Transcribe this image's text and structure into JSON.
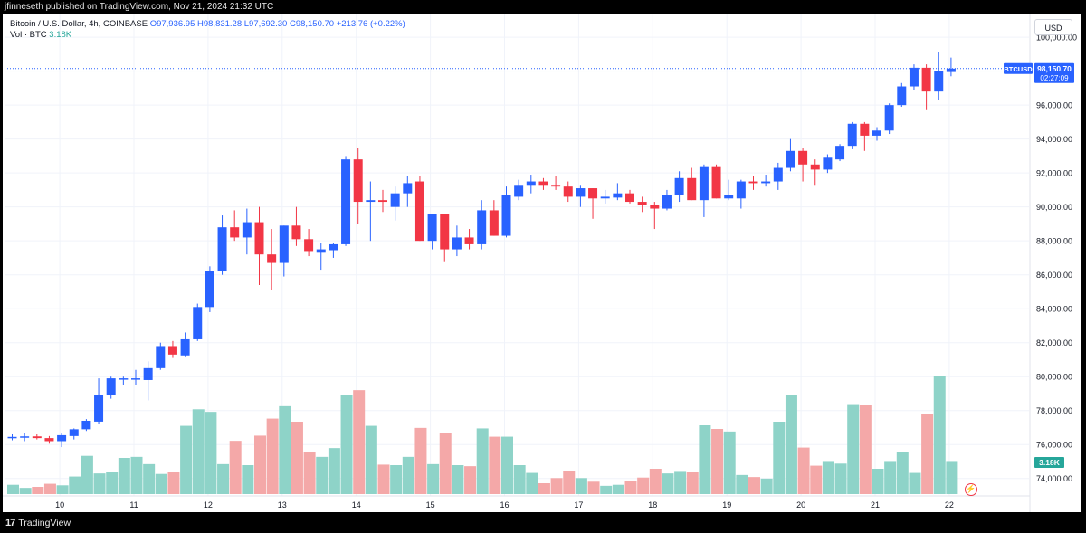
{
  "header": {
    "published": "jfinneseth published on TradingView.com, Nov 21, 2024 21:32 UTC"
  },
  "legend": {
    "symbol": "Bitcoin / U.S. Dollar, 4h, COINBASE",
    "open": "O97,936.95",
    "high": "H98,831.28",
    "low": "L97,692.30",
    "close": "C98,150.70",
    "change": "+213.76 (+0.22%)",
    "volume_label": "Vol · BTC",
    "volume_value": "3.18K"
  },
  "currency": "USD",
  "price_label": {
    "symbol": "BTCUSD",
    "price": "98,150.70",
    "countdown": "02:27:09"
  },
  "volume_badge": "3.18K",
  "footer": {
    "logo": "17",
    "brand": "TradingView"
  },
  "colors": {
    "up": "#2962ff",
    "down": "#f23645",
    "vol_up": "#8ed3c8",
    "vol_down": "#f4a8a8",
    "price_line": "#2962ff",
    "vol_badge": "#26a69a"
  },
  "chart_data": {
    "type": "candlestick",
    "interval": "4h",
    "y_axis_labels": [
      "100,000.00",
      "98,000.00",
      "96,000.00",
      "94,000.00",
      "92,000.00",
      "90,000.00",
      "88,000.00",
      "86,000.00",
      "84,000.00",
      "82,000.00",
      "80,000.00",
      "78,000.00",
      "76,000.00",
      "74,000.00"
    ],
    "ylim": [
      73400,
      100700
    ],
    "volume_scale_max": 1,
    "x_tick_labels": [
      "10",
      "11",
      "12",
      "13",
      "14",
      "15",
      "16",
      "17",
      "18",
      "19",
      "20",
      "21",
      "22"
    ],
    "x_tick_positions": [
      4,
      10,
      16,
      22,
      28,
      34,
      40,
      46,
      52,
      58,
      64,
      70,
      76
    ],
    "last_price": 98150.7,
    "candles": [
      {
        "o": 76450,
        "h": 76600,
        "l": 76250,
        "c": 76450,
        "v": 0.18
      },
      {
        "o": 76420,
        "h": 76700,
        "l": 76200,
        "c": 76480,
        "v": 0.12
      },
      {
        "o": 76480,
        "h": 76600,
        "l": 76300,
        "c": 76380,
        "v": 0.14
      },
      {
        "o": 76380,
        "h": 76500,
        "l": 76050,
        "c": 76200,
        "v": 0.2
      },
      {
        "o": 76200,
        "h": 76650,
        "l": 75850,
        "c": 76550,
        "v": 0.17
      },
      {
        "o": 76500,
        "h": 76950,
        "l": 76300,
        "c": 76900,
        "v": 0.34
      },
      {
        "o": 76900,
        "h": 77500,
        "l": 76800,
        "c": 77400,
        "v": 0.74
      },
      {
        "o": 77350,
        "h": 79900,
        "l": 77200,
        "c": 78900,
        "v": 0.4
      },
      {
        "o": 78900,
        "h": 80000,
        "l": 78700,
        "c": 79900,
        "v": 0.42
      },
      {
        "o": 79900,
        "h": 80000,
        "l": 79500,
        "c": 79900,
        "v": 0.7
      },
      {
        "o": 79850,
        "h": 80400,
        "l": 79500,
        "c": 79900,
        "v": 0.72
      },
      {
        "o": 79800,
        "h": 80900,
        "l": 78600,
        "c": 80500,
        "v": 0.58
      },
      {
        "o": 80500,
        "h": 82000,
        "l": 80400,
        "c": 81800,
        "v": 0.39
      },
      {
        "o": 81800,
        "h": 82100,
        "l": 81100,
        "c": 81300,
        "v": 0.42
      },
      {
        "o": 81250,
        "h": 82600,
        "l": 81200,
        "c": 82200,
        "v": 1.32
      },
      {
        "o": 82200,
        "h": 84300,
        "l": 82100,
        "c": 84100,
        "v": 1.64
      },
      {
        "o": 84100,
        "h": 86500,
        "l": 83800,
        "c": 86200,
        "v": 1.59
      },
      {
        "o": 86200,
        "h": 89500,
        "l": 86000,
        "c": 88800,
        "v": 0.58
      },
      {
        "o": 88800,
        "h": 89800,
        "l": 88000,
        "c": 88200,
        "v": 1.03
      },
      {
        "o": 88200,
        "h": 89900,
        "l": 87200,
        "c": 89100,
        "v": 0.56
      },
      {
        "o": 89100,
        "h": 90000,
        "l": 85400,
        "c": 87200,
        "v": 1.13
      },
      {
        "o": 87200,
        "h": 88700,
        "l": 85100,
        "c": 86700,
        "v": 1.46
      },
      {
        "o": 86700,
        "h": 88900,
        "l": 85900,
        "c": 88900,
        "v": 1.7
      },
      {
        "o": 88900,
        "h": 90000,
        "l": 87700,
        "c": 88100,
        "v": 1.4
      },
      {
        "o": 88100,
        "h": 88700,
        "l": 87100,
        "c": 87400,
        "v": 0.82
      },
      {
        "o": 87300,
        "h": 87900,
        "l": 86300,
        "c": 87500,
        "v": 0.72
      },
      {
        "o": 87450,
        "h": 87900,
        "l": 87000,
        "c": 87800,
        "v": 0.89
      },
      {
        "o": 87800,
        "h": 93000,
        "l": 87700,
        "c": 92800,
        "v": 1.92
      },
      {
        "o": 92800,
        "h": 93500,
        "l": 89000,
        "c": 90300,
        "v": 2.01
      },
      {
        "o": 90300,
        "h": 91500,
        "l": 88000,
        "c": 90400,
        "v": 1.32
      },
      {
        "o": 90400,
        "h": 91000,
        "l": 89700,
        "c": 90300,
        "v": 0.57
      },
      {
        "o": 90000,
        "h": 91200,
        "l": 89200,
        "c": 90800,
        "v": 0.56
      },
      {
        "o": 90800,
        "h": 91800,
        "l": 90000,
        "c": 91400,
        "v": 0.72
      },
      {
        "o": 91500,
        "h": 91800,
        "l": 88000,
        "c": 88000,
        "v": 1.28
      },
      {
        "o": 88000,
        "h": 89600,
        "l": 87500,
        "c": 89600,
        "v": 0.58
      },
      {
        "o": 89600,
        "h": 89600,
        "l": 86800,
        "c": 87500,
        "v": 1.18
      },
      {
        "o": 87500,
        "h": 88900,
        "l": 87100,
        "c": 88200,
        "v": 0.56
      },
      {
        "o": 88200,
        "h": 88700,
        "l": 87500,
        "c": 87800,
        "v": 0.54
      },
      {
        "o": 87800,
        "h": 90400,
        "l": 87500,
        "c": 89800,
        "v": 1.27
      },
      {
        "o": 89800,
        "h": 90400,
        "l": 88300,
        "c": 88300,
        "v": 1.11
      },
      {
        "o": 88300,
        "h": 91200,
        "l": 88200,
        "c": 90700,
        "v": 1.11
      },
      {
        "o": 90600,
        "h": 91600,
        "l": 90400,
        "c": 91300,
        "v": 0.56
      },
      {
        "o": 91300,
        "h": 91900,
        "l": 90800,
        "c": 91500,
        "v": 0.41
      },
      {
        "o": 91500,
        "h": 91700,
        "l": 91000,
        "c": 91300,
        "v": 0.21
      },
      {
        "o": 91300,
        "h": 91800,
        "l": 91000,
        "c": 91200,
        "v": 0.31
      },
      {
        "o": 91200,
        "h": 91500,
        "l": 90300,
        "c": 90600,
        "v": 0.45
      },
      {
        "o": 90600,
        "h": 91300,
        "l": 90000,
        "c": 91100,
        "v": 0.31
      },
      {
        "o": 91100,
        "h": 91100,
        "l": 89300,
        "c": 90500,
        "v": 0.24
      },
      {
        "o": 90500,
        "h": 91000,
        "l": 90200,
        "c": 90600,
        "v": 0.16
      },
      {
        "o": 90550,
        "h": 91400,
        "l": 90400,
        "c": 90800,
        "v": 0.18
      },
      {
        "o": 90800,
        "h": 91000,
        "l": 90200,
        "c": 90300,
        "v": 0.25
      },
      {
        "o": 90300,
        "h": 90600,
        "l": 89700,
        "c": 90100,
        "v": 0.32
      },
      {
        "o": 90100,
        "h": 90300,
        "l": 88700,
        "c": 89900,
        "v": 0.49
      },
      {
        "o": 89900,
        "h": 91000,
        "l": 89800,
        "c": 90700,
        "v": 0.4
      },
      {
        "o": 90700,
        "h": 92100,
        "l": 90300,
        "c": 91700,
        "v": 0.43
      },
      {
        "o": 91700,
        "h": 92300,
        "l": 90400,
        "c": 90400,
        "v": 0.42
      },
      {
        "o": 90400,
        "h": 92500,
        "l": 89400,
        "c": 92400,
        "v": 1.33
      },
      {
        "o": 92400,
        "h": 92500,
        "l": 90500,
        "c": 90500,
        "v": 1.26
      },
      {
        "o": 90500,
        "h": 91600,
        "l": 90400,
        "c": 90700,
        "v": 1.21
      },
      {
        "o": 90500,
        "h": 91600,
        "l": 89900,
        "c": 91500,
        "v": 0.37
      },
      {
        "o": 91500,
        "h": 91800,
        "l": 91000,
        "c": 91400,
        "v": 0.33
      },
      {
        "o": 91400,
        "h": 91900,
        "l": 91200,
        "c": 91500,
        "v": 0.3
      },
      {
        "o": 91500,
        "h": 92600,
        "l": 91000,
        "c": 92300,
        "v": 1.4
      },
      {
        "o": 92300,
        "h": 94000,
        "l": 92100,
        "c": 93300,
        "v": 1.91
      },
      {
        "o": 93300,
        "h": 93500,
        "l": 91500,
        "c": 92500,
        "v": 0.9
      },
      {
        "o": 92500,
        "h": 92800,
        "l": 91300,
        "c": 92200,
        "v": 0.55
      },
      {
        "o": 92200,
        "h": 93100,
        "l": 92000,
        "c": 92900,
        "v": 0.64
      },
      {
        "o": 92800,
        "h": 93700,
        "l": 92700,
        "c": 93600,
        "v": 0.59
      },
      {
        "o": 93600,
        "h": 95000,
        "l": 93400,
        "c": 94900,
        "v": 1.74
      },
      {
        "o": 94900,
        "h": 95000,
        "l": 93300,
        "c": 94200,
        "v": 1.72
      },
      {
        "o": 94200,
        "h": 94700,
        "l": 93900,
        "c": 94500,
        "v": 0.49
      },
      {
        "o": 94500,
        "h": 96100,
        "l": 94300,
        "c": 96000,
        "v": 0.64
      },
      {
        "o": 96000,
        "h": 97300,
        "l": 95900,
        "c": 97100,
        "v": 0.82
      },
      {
        "o": 97100,
        "h": 98400,
        "l": 96900,
        "c": 98200,
        "v": 0.41
      },
      {
        "o": 98200,
        "h": 98400,
        "l": 95700,
        "c": 96800,
        "v": 1.55
      },
      {
        "o": 96800,
        "h": 99100,
        "l": 96300,
        "c": 98000,
        "v": 2.29
      },
      {
        "o": 97950,
        "h": 98800,
        "l": 97700,
        "c": 98150,
        "v": 0.64
      }
    ]
  }
}
